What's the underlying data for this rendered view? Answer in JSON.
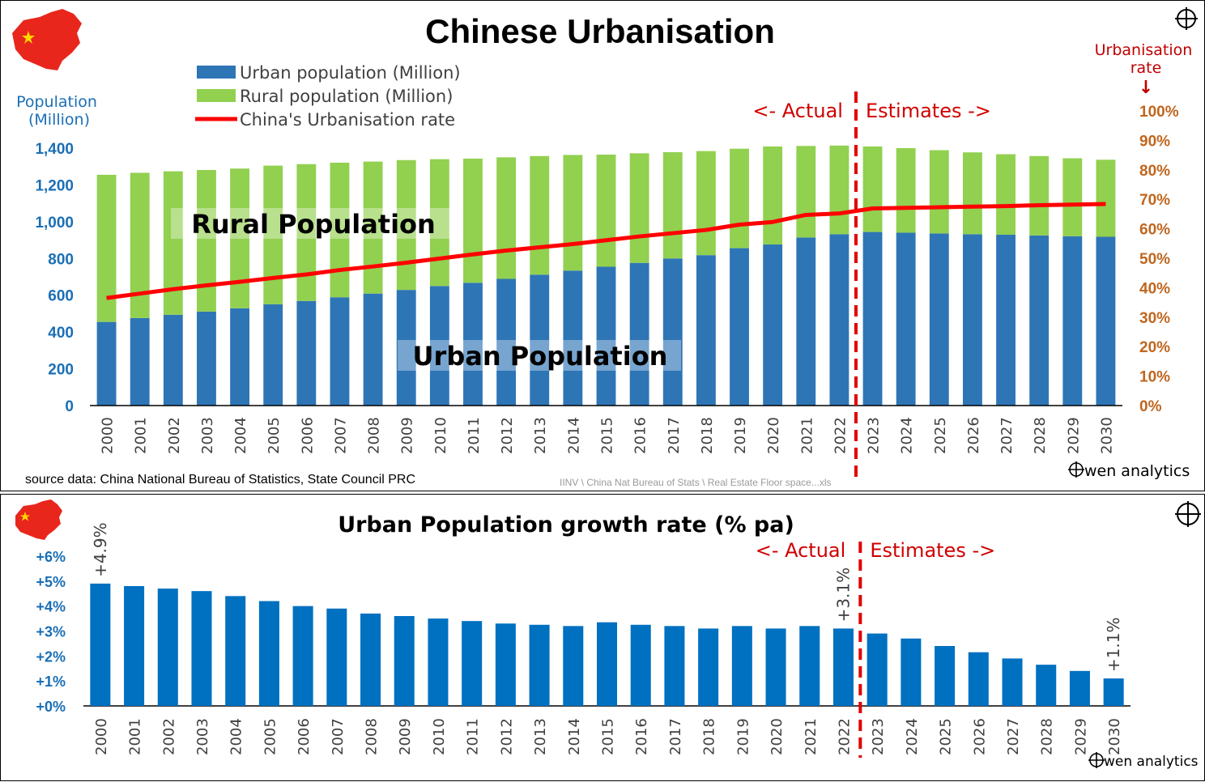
{
  "colors": {
    "urban": "#2e75b6",
    "rural": "#92d050",
    "rate_line": "#ff0000",
    "growth_bar": "#0070c0",
    "left_axis": "#1a6fb5",
    "right_axis": "#c0661e",
    "divider": "#e00000",
    "annotation_red": "#d00000"
  },
  "icons": {
    "flag": "china-flag-map-icon",
    "logo": "crosshair-circle-icon"
  },
  "chart_data": [
    {
      "type": "bar",
      "stacked": true,
      "title": "Chinese Urbanisation",
      "categories": [
        "2000",
        "2001",
        "2002",
        "2003",
        "2004",
        "2005",
        "2006",
        "2007",
        "2008",
        "2009",
        "2010",
        "2011",
        "2012",
        "2013",
        "2014",
        "2015",
        "2016",
        "2017",
        "2018",
        "2019",
        "2020",
        "2021",
        "2022",
        "2023",
        "2024",
        "2025",
        "2026",
        "2027",
        "2028",
        "2029",
        "2030"
      ],
      "series": [
        {
          "name": "Urban population (Million)",
          "values": [
            455,
            476,
            494,
            511,
            529,
            551,
            569,
            589,
            609,
            629,
            650,
            668,
            689,
            712,
            734,
            755,
            776,
            800,
            818,
            856,
            876,
            914,
            932,
            944,
            940,
            936,
            932,
            929,
            925,
            921,
            918
          ]
        },
        {
          "name": "Rural population (Million)",
          "values": [
            800,
            790,
            780,
            770,
            760,
            754,
            744,
            732,
            718,
            706,
            690,
            675,
            661,
            645,
            629,
            610,
            596,
            578,
            566,
            541,
            533,
            498,
            482,
            465,
            460,
            453,
            445,
            438,
            432,
            424,
            419
          ]
        },
        {
          "name": "China's Urbanisation rate",
          "axis": "right",
          "type": "line",
          "values": [
            36.5,
            38.0,
            39.5,
            40.8,
            42.0,
            43.3,
            44.5,
            46.0,
            47.2,
            48.5,
            49.9,
            51.3,
            52.6,
            53.7,
            54.8,
            56.1,
            57.4,
            58.5,
            59.6,
            61.4,
            62.3,
            64.7,
            65.2,
            66.9,
            67.1,
            67.3,
            67.5,
            67.7,
            68.0,
            68.2,
            68.4
          ]
        }
      ],
      "ylabel": "Population (Million)",
      "ylim": [
        0,
        1400
      ],
      "yticks": [
        "0",
        "200",
        "400",
        "600",
        "800",
        "1,000",
        "1,200",
        "1,400"
      ],
      "y2label": "Urbanisation rate",
      "y2lim": [
        0,
        100
      ],
      "y2ticks": [
        "0%",
        "10%",
        "20%",
        "30%",
        "40%",
        "50%",
        "60%",
        "70%",
        "80%",
        "90%",
        "100%"
      ],
      "y2_arrow": "↓",
      "annotations": {
        "rural_label": "Rural Population",
        "urban_label": "Urban Population",
        "actual": "<- Actual",
        "estimates": "Estimates ->",
        "split_after": "2022"
      },
      "legend_position": "top-left",
      "source": "source data: China National Bureau of Statistics, State Council PRC",
      "file_path": "IINV \\ China Nat Bureau of Stats \\ Real Estate Floor space...xls",
      "brand": "wen analytics"
    },
    {
      "type": "bar",
      "title": "Urban Population growth rate (% pa)",
      "categories": [
        "2000",
        "2001",
        "2002",
        "2003",
        "2004",
        "2005",
        "2006",
        "2007",
        "2008",
        "2009",
        "2010",
        "2011",
        "2012",
        "2013",
        "2014",
        "2015",
        "2016",
        "2017",
        "2018",
        "2019",
        "2020",
        "2021",
        "2022",
        "2023",
        "2024",
        "2025",
        "2026",
        "2027",
        "2028",
        "2029",
        "2030"
      ],
      "values": [
        4.9,
        4.8,
        4.7,
        4.6,
        4.4,
        4.2,
        4.0,
        3.9,
        3.7,
        3.6,
        3.5,
        3.4,
        3.3,
        3.25,
        3.2,
        3.35,
        3.25,
        3.2,
        3.1,
        3.2,
        3.1,
        3.2,
        3.1,
        2.9,
        2.7,
        2.4,
        2.15,
        1.9,
        1.65,
        1.4,
        1.1
      ],
      "ylim": [
        0,
        6
      ],
      "yticks": [
        "+0%",
        "+1%",
        "+2%",
        "+3%",
        "+4%",
        "+5%",
        "+6%"
      ],
      "data_labels": {
        "2000": "+4.9%",
        "2022": "+3.1%",
        "2030": "+1.1%"
      },
      "annotations": {
        "actual": "<- Actual",
        "estimates": "Estimates ->",
        "split_after": "2022"
      },
      "brand": "wen analytics"
    }
  ]
}
